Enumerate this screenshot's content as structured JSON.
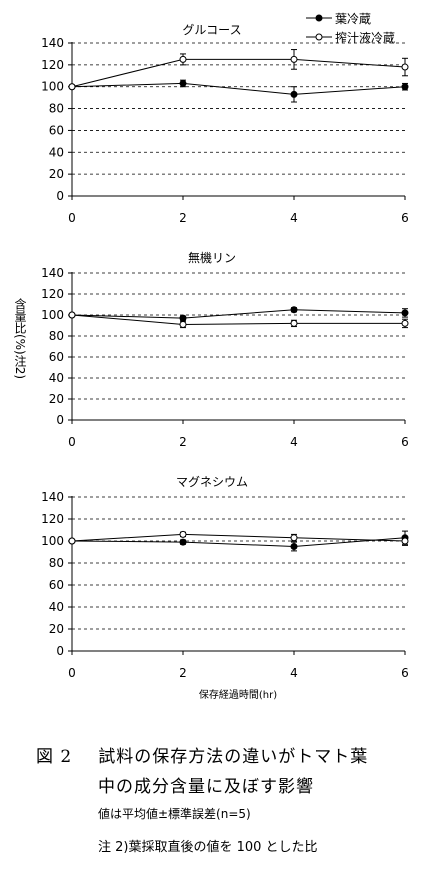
{
  "chart_data": [
    {
      "type": "line",
      "title": "グルコース",
      "x": [
        0,
        2,
        4,
        6
      ],
      "xlim": [
        0,
        6
      ],
      "ylim": [
        0,
        140
      ],
      "yticks": [
        0,
        20,
        40,
        60,
        80,
        100,
        120,
        140
      ],
      "xticks": [
        0,
        2,
        4,
        6
      ],
      "grid": "horizontal-dashed",
      "legend_position": "top-right",
      "series": [
        {
          "name": "葉冷蔵",
          "marker": "filled",
          "values": [
            100,
            103,
            93,
            100
          ],
          "err": [
            0,
            3,
            7,
            3
          ]
        },
        {
          "name": "搾汁液冷蔵",
          "marker": "open",
          "values": [
            100,
            125,
            125,
            118
          ],
          "err": [
            0,
            5,
            9,
            8
          ]
        }
      ]
    },
    {
      "type": "line",
      "title": "無機リン",
      "ylabel": "含量比(%)注2)",
      "x": [
        0,
        2,
        4,
        6
      ],
      "xlim": [
        0,
        6
      ],
      "ylim": [
        0,
        140
      ],
      "yticks": [
        0,
        20,
        40,
        60,
        80,
        100,
        120,
        140
      ],
      "xticks": [
        0,
        2,
        4,
        6
      ],
      "grid": "horizontal-dashed",
      "series": [
        {
          "marker": "filled",
          "values": [
            100,
            97,
            105,
            102
          ],
          "err": [
            0,
            2,
            2,
            4
          ]
        },
        {
          "marker": "open",
          "values": [
            100,
            91,
            92,
            92
          ],
          "err": [
            0,
            3,
            3,
            4
          ]
        }
      ]
    },
    {
      "type": "line",
      "title": "マグネシウム",
      "xlabel": "保存経過時間(hr)",
      "x": [
        0,
        2,
        4,
        6
      ],
      "xlim": [
        0,
        6
      ],
      "ylim": [
        0,
        140
      ],
      "yticks": [
        0,
        20,
        40,
        60,
        80,
        100,
        120,
        140
      ],
      "xticks": [
        0,
        2,
        4,
        6
      ],
      "grid": "horizontal-dashed",
      "series": [
        {
          "marker": "filled",
          "values": [
            100,
            99,
            95,
            103
          ],
          "err": [
            0,
            2,
            4,
            6
          ]
        },
        {
          "marker": "open",
          "values": [
            100,
            106,
            103,
            100
          ],
          "err": [
            0,
            2,
            3,
            4
          ]
        }
      ]
    }
  ],
  "caption": {
    "fig_num": "図 2",
    "line1": "試料の保存方法の違いがトマト葉",
    "line2": "中の成分含量に及ぼす影響",
    "line3": "値は平均値±標準誤差(n=5)",
    "line4": "注 2)葉採取直後の値を 100 とした比"
  }
}
